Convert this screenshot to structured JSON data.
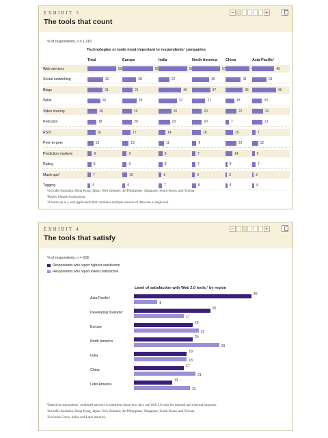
{
  "exhibit3": {
    "label": "EXHIBIT 3",
    "title": "The tools that count",
    "respondents": "% of respondents, n = 1,216",
    "chart_title": "Technologies or tools most important to respondents’ companies",
    "footnotes": [
      "¹Includes Australia, Hong Kong, Japan, New Zealand, the Philippines, Singapore, South Korea, and Taiwan.",
      "²Really Simple Syndication.",
      "³A mash-up is a web application that combines multiple sources of data into a single tool."
    ]
  },
  "exhibit4": {
    "label": "EXHIBIT 4",
    "title": "The tools that satisfy",
    "respondents": "% of respondents, n = 608",
    "chart_title": "Level of satisfaction with Web 2.0 tools,¹ by region",
    "legend": {
      "high": "Respondents who report highest satisfaction",
      "low": "Respondents who report lowest satisfaction"
    },
    "footnotes": [
      "¹Based on respondents’ combined answers to questions about how they use Web 2.0 tools for internal and external purposes.",
      "²Includes Australia, Hong Kong, Japan, New Zealand, the Philippines, Singapore, South Korea, and Taiwan.",
      "³Excludes China, India, and Latin America."
    ]
  },
  "colors": {
    "bar_table": "#7f74c2",
    "bar_high": "#3a1f7a",
    "bar_low": "#9b90d6",
    "header_bg": "#f7f1dc",
    "minus_plus": "#c2422b"
  },
  "chart_data": [
    {
      "type": "table",
      "columns": [
        "Total",
        "Europe",
        "India",
        "North America",
        "China",
        "Asia-Pacific¹"
      ],
      "rows": [
        "Web services",
        "Social networking",
        "Blogs",
        "Wikis",
        "Video sharing",
        "Podcasts",
        "RSS²",
        "Peer-to-peer",
        "Prediction markets",
        "Rating",
        "Mash-ups³",
        "Tagging"
      ],
      "values": [
        [
          58,
          62,
          58,
          57,
          48,
          45
        ],
        [
          32,
          28,
          22,
          35,
          31,
          29
        ],
        [
          31,
          21,
          46,
          37,
          35,
          48
        ],
        [
          26,
          29,
          37,
          27,
          18,
          20
        ],
        [
          20,
          19,
          26,
          20,
          22,
          22
        ],
        [
          18,
          20,
          23,
          20,
          7,
          21
        ],
        [
          16,
          17,
          14,
          18,
          15,
          7
        ],
        [
          12,
          13,
          11,
          9,
          22,
          12
        ],
        [
          9,
          9,
          8,
          7,
          14,
          5
        ],
        [
          8,
          9,
          8,
          7,
          4,
          7
        ],
        [
          7,
          10,
          6,
          6,
          3,
          3
        ],
        [
          6,
          6,
          7,
          8,
          4,
          4
        ]
      ]
    },
    {
      "type": "bar",
      "orientation": "horizontal",
      "categories": [
        "Asia-Pacific²",
        "Developing markets³",
        "Europe",
        "North America",
        "India",
        "China",
        "Latin America"
      ],
      "series": [
        {
          "name": "Respondents who report highest satisfaction",
          "values": [
            40,
            26,
            20,
            20,
            18,
            17,
            13
          ]
        },
        {
          "name": "Respondents who report lowest satisfaction",
          "values": [
            8,
            17,
            22,
            29,
            18,
            21,
            19
          ]
        }
      ]
    }
  ]
}
